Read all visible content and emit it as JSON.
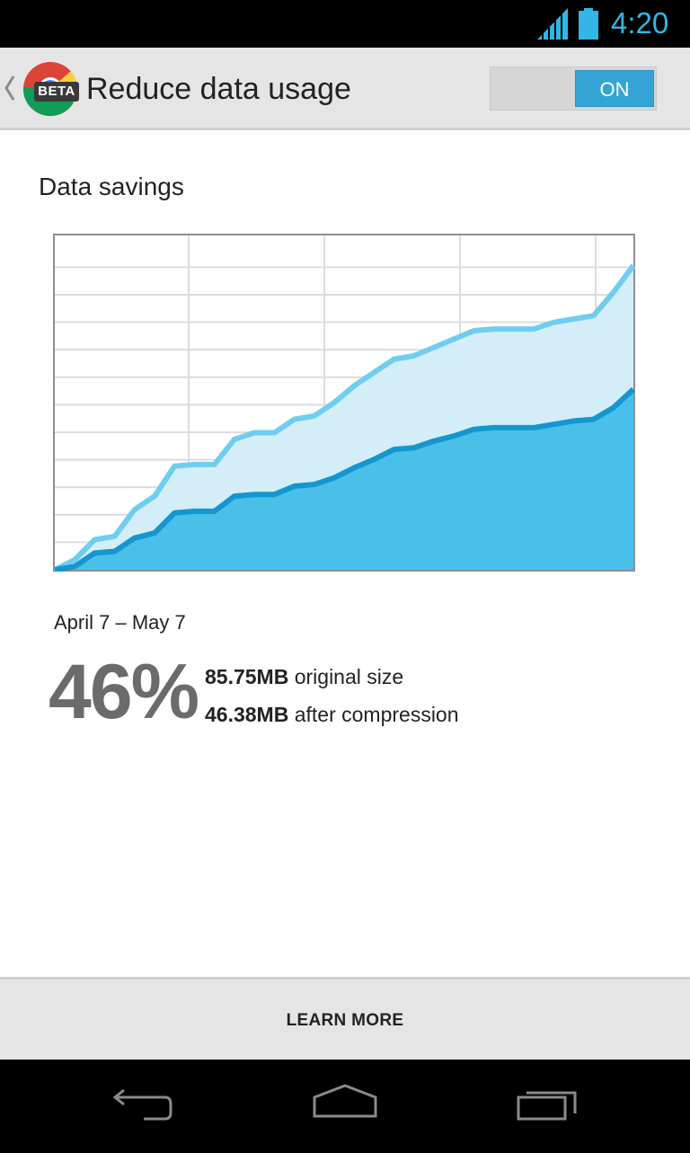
{
  "status_bar": {
    "time": "4:20",
    "icons": [
      "signal-icon",
      "battery-icon"
    ],
    "accent_color": "#33b5e5"
  },
  "action_bar": {
    "title": "Reduce data usage",
    "badge": "BETA",
    "toggle_state": "ON",
    "icons": [
      "up-caret-icon",
      "chrome-logo-icon"
    ]
  },
  "content": {
    "section_title": "Data savings",
    "date_range": "April 7 – May 7",
    "percent": "46%",
    "original_value": "85.75MB",
    "original_label": " original size",
    "compressed_value": "46.38MB",
    "compressed_label": " after compression"
  },
  "chart_data": {
    "type": "area",
    "title": "",
    "xlabel": "",
    "ylabel": "",
    "grid": true,
    "ylim": [
      0,
      100
    ],
    "series": [
      {
        "color": "#6fcdf0",
        "fill": "#d3eef9",
        "values": [
          0,
          3,
          9,
          10,
          18,
          22,
          31,
          31.5,
          31.5,
          39,
          41,
          41,
          45,
          46,
          50,
          55,
          59,
          63,
          64,
          66.5,
          69,
          71.5,
          72,
          72,
          72,
          74,
          75,
          76,
          83,
          91
        ]
      },
      {
        "color": "#1496cf",
        "fill": "#49bfe9",
        "values": [
          0,
          1,
          5,
          5.5,
          9.5,
          11,
          17,
          17.5,
          17.5,
          22,
          22.5,
          22.5,
          25,
          25.5,
          27.5,
          30.5,
          33,
          36,
          36.5,
          38.5,
          40,
          42,
          42.5,
          42.5,
          42.5,
          43.5,
          44.5,
          45,
          48.5,
          54
        ]
      }
    ]
  },
  "bottom_bar": {
    "button_label": "LEARN MORE"
  },
  "nav_bar": {
    "icons": [
      "back-icon",
      "home-icon",
      "recents-icon"
    ]
  }
}
